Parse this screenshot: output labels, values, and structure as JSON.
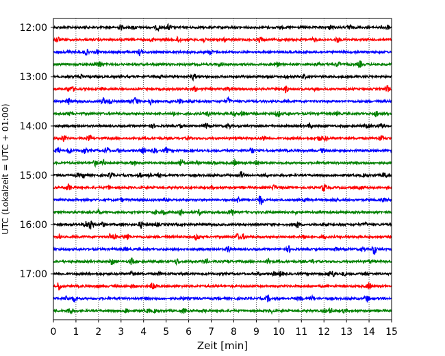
{
  "chart_data": {
    "type": "line",
    "title": "",
    "xlabel": "Zeit  [min]",
    "ylabel": "UTC (Lokalzeit = UTC + 01:00)",
    "xlim": [
      0,
      15
    ],
    "x_ticks": [
      0,
      1,
      2,
      3,
      4,
      5,
      6,
      7,
      8,
      9,
      10,
      11,
      12,
      13,
      14,
      15
    ],
    "x_tick_labels": [
      "0",
      "1",
      "2",
      "3",
      "4",
      "5",
      "6",
      "7",
      "8",
      "9",
      "10",
      "11",
      "12",
      "13",
      "14",
      "15"
    ],
    "y_tick_labels": [
      "12:00",
      "13:00",
      "14:00",
      "15:00",
      "16:00",
      "17:00"
    ],
    "y_tick_rows": [
      0,
      4,
      8,
      12,
      16,
      20
    ],
    "grid": "vertical dotted",
    "trace_interval_minutes": 15,
    "traces": [
      {
        "start": "12:00",
        "color": "#000000"
      },
      {
        "start": "12:15",
        "color": "#ff0000"
      },
      {
        "start": "12:30",
        "color": "#0000ff"
      },
      {
        "start": "12:45",
        "color": "#008000"
      },
      {
        "start": "13:00",
        "color": "#000000"
      },
      {
        "start": "13:15",
        "color": "#ff0000"
      },
      {
        "start": "13:30",
        "color": "#0000ff"
      },
      {
        "start": "13:45",
        "color": "#008000"
      },
      {
        "start": "14:00",
        "color": "#000000"
      },
      {
        "start": "14:15",
        "color": "#ff0000"
      },
      {
        "start": "14:30",
        "color": "#0000ff"
      },
      {
        "start": "14:45",
        "color": "#008000"
      },
      {
        "start": "15:00",
        "color": "#000000"
      },
      {
        "start": "15:15",
        "color": "#ff0000"
      },
      {
        "start": "15:30",
        "color": "#0000ff"
      },
      {
        "start": "15:45",
        "color": "#008000"
      },
      {
        "start": "16:00",
        "color": "#000000"
      },
      {
        "start": "16:15",
        "color": "#ff0000"
      },
      {
        "start": "16:30",
        "color": "#0000ff"
      },
      {
        "start": "16:45",
        "color": "#008000"
      },
      {
        "start": "17:00",
        "color": "#000000"
      },
      {
        "start": "17:15",
        "color": "#ff0000"
      },
      {
        "start": "17:30",
        "color": "#0000ff"
      },
      {
        "start": "17:45",
        "color": "#008000"
      }
    ]
  }
}
